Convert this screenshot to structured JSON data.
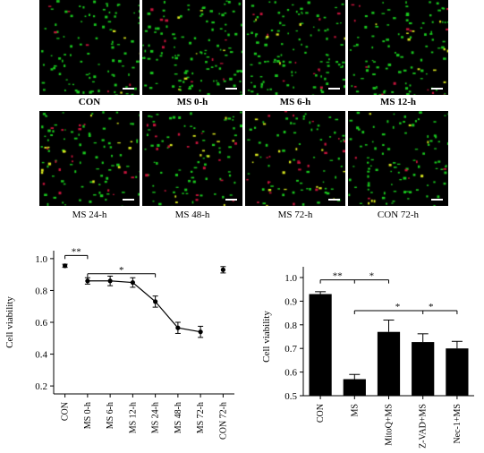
{
  "panels": [
    {
      "label": "CON",
      "green": 95,
      "red": 6,
      "yellow": 4
    },
    {
      "label": "MS 0-h",
      "green": 110,
      "red": 10,
      "yellow": 6
    },
    {
      "label": "MS 6-h",
      "green": 105,
      "red": 12,
      "yellow": 6
    },
    {
      "label": "MS 12-h",
      "green": 90,
      "red": 14,
      "yellow": 10
    },
    {
      "label": "MS 24-h",
      "green": 80,
      "red": 16,
      "yellow": 14
    },
    {
      "label": "MS 48-h",
      "green": 70,
      "red": 18,
      "yellow": 12
    },
    {
      "label": "MS 72-h",
      "green": 60,
      "red": 22,
      "yellow": 16
    },
    {
      "label": "CON 72-h",
      "green": 95,
      "red": 6,
      "yellow": 8
    }
  ],
  "colors": {
    "green": "#19c81e",
    "red": "#c8143c",
    "yellow": "#d7e61e",
    "panel_bg": "#000000"
  },
  "chart_data": [
    {
      "type": "line",
      "categories": [
        "CON",
        "MS 0-h",
        "MS 6-h",
        "MS 12-h",
        "MS 24-h",
        "MS 48-h",
        "MS 72-h",
        "CON 72-h"
      ],
      "values": [
        0.955,
        0.86,
        0.86,
        0.85,
        0.73,
        0.565,
        0.54,
        0.93
      ],
      "errors": [
        0.01,
        0.02,
        0.03,
        0.03,
        0.035,
        0.035,
        0.035,
        0.02
      ],
      "connected": [
        false,
        true,
        true,
        true,
        true,
        true,
        true,
        false
      ],
      "ylabel": "Cell viability",
      "ylim": [
        0.15,
        1.05
      ],
      "yticks": [
        0.2,
        0.4,
        0.6,
        0.8,
        1.0
      ],
      "ytick_labels": [
        "0.2",
        "0.4",
        "0.6",
        "0.8",
        "1.0"
      ],
      "significance": [
        {
          "from": 0,
          "to": 1,
          "label": "**"
        },
        {
          "from": 1,
          "to": 4,
          "label": "*"
        }
      ]
    },
    {
      "type": "bar",
      "categories": [
        "CON",
        "MS",
        "MitoQ+MS",
        "Z-VAD+MS",
        "Nec-1+MS"
      ],
      "values": [
        0.93,
        0.57,
        0.77,
        0.727,
        0.7
      ],
      "errors": [
        0.01,
        0.02,
        0.05,
        0.035,
        0.03
      ],
      "ylabel": "Cell viability",
      "ylim": [
        0.5,
        1.0
      ],
      "yticks": [
        0.5,
        0.6,
        0.7,
        0.8,
        0.9,
        1.0
      ],
      "ytick_labels": [
        "0.5",
        "0.6",
        "0.7",
        "0.8",
        "0.9",
        "1.0"
      ],
      "significance": [
        {
          "from": 0,
          "to": 1,
          "label": "**"
        },
        {
          "from": 1,
          "to": 2,
          "label": "*"
        },
        {
          "from": 1,
          "to": 3,
          "label": "*"
        },
        {
          "from": 1,
          "to": 4,
          "label": "*"
        }
      ]
    }
  ]
}
